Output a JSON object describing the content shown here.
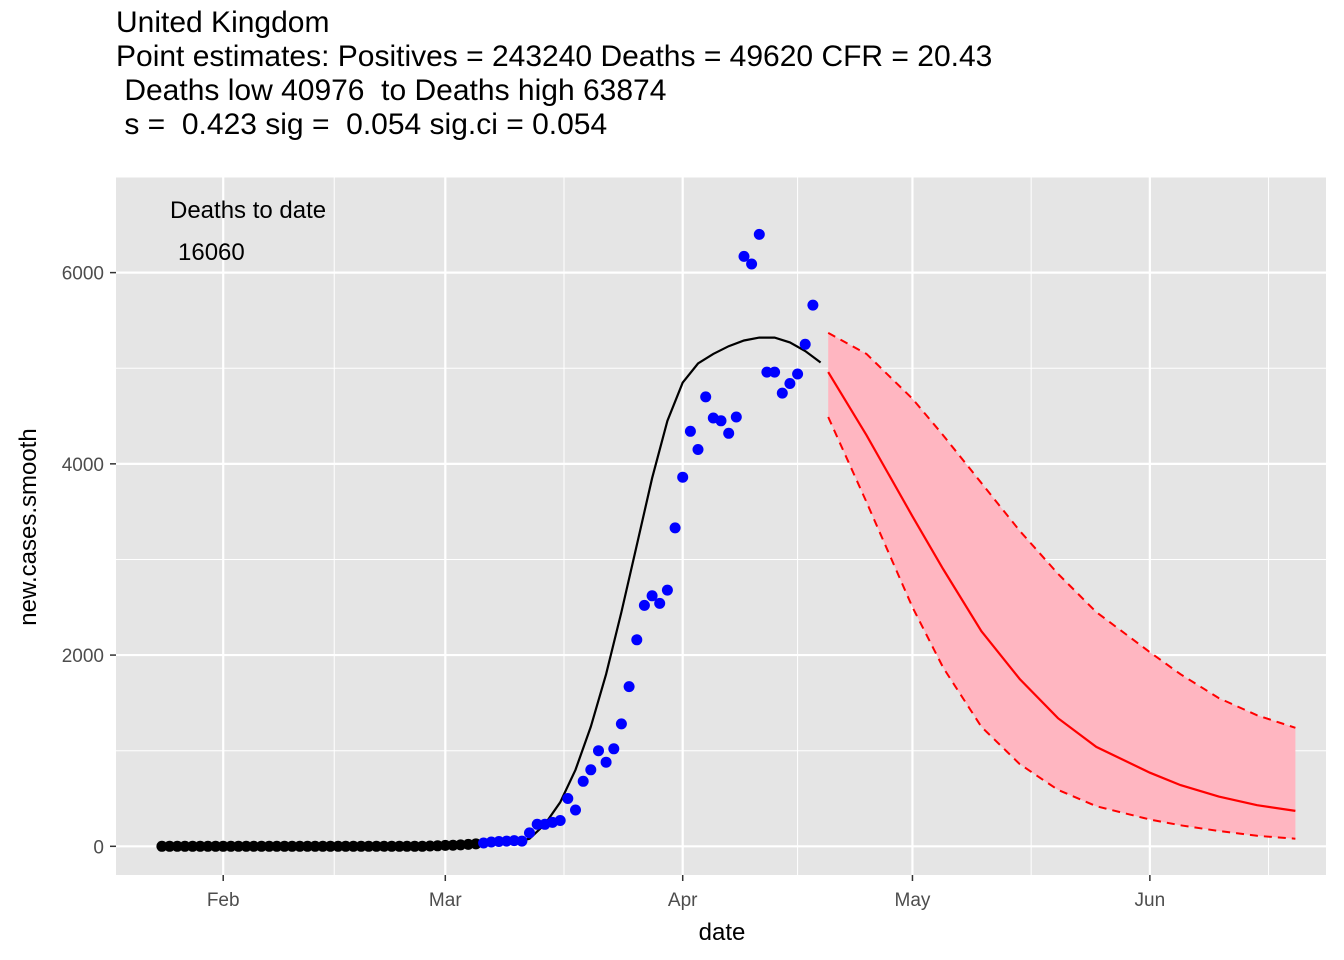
{
  "title_lines": [
    "United Kingdom",
    "Point estimates: Positives = 243240 Deaths = 49620 CFR = 20.43",
    " Deaths low 40976  to Deaths high 63874",
    " s =  0.423 sig =  0.054 sig.ci = 0.054"
  ],
  "chart_data": {
    "type": "scatter",
    "xlabel": "date",
    "ylabel": "new.cases.smooth",
    "x_ticks": [
      {
        "label": "Feb",
        "date": "2020-02-01"
      },
      {
        "label": "Mar",
        "date": "2020-03-01"
      },
      {
        "label": "Apr",
        "date": "2020-04-01"
      },
      {
        "label": "May",
        "date": "2020-05-01"
      },
      {
        "label": "Jun",
        "date": "2020-06-01"
      }
    ],
    "y_ticks": [
      0,
      2000,
      4000,
      6000
    ],
    "xlim": [
      "2020-01-18",
      "2020-06-24"
    ],
    "ylim": [
      -300,
      7000
    ],
    "grid": true,
    "annotation": {
      "line1": "Deaths to date",
      "line2": "16060"
    },
    "colors": {
      "panel": "#e5e5e5",
      "grid": "#ffffff",
      "early_points": "#000000",
      "recent_points": "#0000ff",
      "fit_line": "#000000",
      "forecast": "#ff0000",
      "forecast_band": "#ffb6c1"
    },
    "series": [
      {
        "color_key": "early_points",
        "points": [
          [
            "2020-01-24",
            0
          ],
          [
            "2020-01-25",
            0
          ],
          [
            "2020-01-26",
            0
          ],
          [
            "2020-01-27",
            0
          ],
          [
            "2020-01-28",
            0
          ],
          [
            "2020-01-29",
            0
          ],
          [
            "2020-01-30",
            0
          ],
          [
            "2020-01-31",
            0
          ],
          [
            "2020-02-01",
            0
          ],
          [
            "2020-02-02",
            0
          ],
          [
            "2020-02-03",
            0
          ],
          [
            "2020-02-04",
            0
          ],
          [
            "2020-02-05",
            0
          ],
          [
            "2020-02-06",
            0
          ],
          [
            "2020-02-07",
            0
          ],
          [
            "2020-02-08",
            0
          ],
          [
            "2020-02-09",
            0
          ],
          [
            "2020-02-10",
            0
          ],
          [
            "2020-02-11",
            0
          ],
          [
            "2020-02-12",
            0
          ],
          [
            "2020-02-13",
            0
          ],
          [
            "2020-02-14",
            0
          ],
          [
            "2020-02-15",
            0
          ],
          [
            "2020-02-16",
            0
          ],
          [
            "2020-02-17",
            0
          ],
          [
            "2020-02-18",
            0
          ],
          [
            "2020-02-19",
            0
          ],
          [
            "2020-02-20",
            0
          ],
          [
            "2020-02-21",
            0
          ],
          [
            "2020-02-22",
            0
          ],
          [
            "2020-02-23",
            0
          ],
          [
            "2020-02-24",
            0
          ],
          [
            "2020-02-25",
            0
          ],
          [
            "2020-02-26",
            0
          ],
          [
            "2020-02-27",
            0
          ],
          [
            "2020-02-28",
            3
          ],
          [
            "2020-02-29",
            5
          ],
          [
            "2020-03-01",
            10
          ],
          [
            "2020-03-02",
            12
          ],
          [
            "2020-03-03",
            15
          ],
          [
            "2020-03-04",
            20
          ],
          [
            "2020-03-05",
            25
          ]
        ]
      },
      {
        "color_key": "recent_points",
        "points": [
          [
            "2020-03-06",
            35
          ],
          [
            "2020-03-07",
            45
          ],
          [
            "2020-03-08",
            50
          ],
          [
            "2020-03-09",
            55
          ],
          [
            "2020-03-10",
            60
          ],
          [
            "2020-03-11",
            55
          ],
          [
            "2020-03-12",
            140
          ],
          [
            "2020-03-13",
            230
          ],
          [
            "2020-03-14",
            230
          ],
          [
            "2020-03-15",
            250
          ],
          [
            "2020-03-16",
            270
          ],
          [
            "2020-03-17",
            500
          ],
          [
            "2020-03-18",
            380
          ],
          [
            "2020-03-19",
            680
          ],
          [
            "2020-03-20",
            800
          ],
          [
            "2020-03-21",
            1000
          ],
          [
            "2020-03-22",
            880
          ],
          [
            "2020-03-23",
            1020
          ],
          [
            "2020-03-24",
            1280
          ],
          [
            "2020-03-25",
            1670
          ],
          [
            "2020-03-26",
            2160
          ],
          [
            "2020-03-27",
            2520
          ],
          [
            "2020-03-28",
            2620
          ],
          [
            "2020-03-29",
            2540
          ],
          [
            "2020-03-30",
            2680
          ],
          [
            "2020-03-31",
            3330
          ],
          [
            "2020-04-01",
            3860
          ],
          [
            "2020-04-02",
            4340
          ],
          [
            "2020-04-03",
            4150
          ],
          [
            "2020-04-04",
            4700
          ],
          [
            "2020-04-05",
            4480
          ],
          [
            "2020-04-06",
            4450
          ],
          [
            "2020-04-07",
            4320
          ],
          [
            "2020-04-08",
            4490
          ],
          [
            "2020-04-09",
            6170
          ],
          [
            "2020-04-10",
            6090
          ],
          [
            "2020-04-11",
            6400
          ],
          [
            "2020-04-12",
            4960
          ],
          [
            "2020-04-13",
            4960
          ],
          [
            "2020-04-14",
            4740
          ],
          [
            "2020-04-15",
            4840
          ],
          [
            "2020-04-16",
            4940
          ],
          [
            "2020-04-17",
            5250
          ],
          [
            "2020-04-18",
            5660
          ]
        ]
      }
    ],
    "fit_line": [
      [
        "2020-03-05",
        20
      ],
      [
        "2020-03-08",
        25
      ],
      [
        "2020-03-10",
        40
      ],
      [
        "2020-03-12",
        80
      ],
      [
        "2020-03-14",
        230
      ],
      [
        "2020-03-16",
        460
      ],
      [
        "2020-03-18",
        800
      ],
      [
        "2020-03-20",
        1250
      ],
      [
        "2020-03-22",
        1800
      ],
      [
        "2020-03-24",
        2450
      ],
      [
        "2020-03-26",
        3150
      ],
      [
        "2020-03-28",
        3850
      ],
      [
        "2020-03-30",
        4450
      ],
      [
        "2020-04-01",
        4850
      ],
      [
        "2020-04-03",
        5050
      ],
      [
        "2020-04-05",
        5150
      ],
      [
        "2020-04-07",
        5230
      ],
      [
        "2020-04-09",
        5290
      ],
      [
        "2020-04-11",
        5320
      ],
      [
        "2020-04-13",
        5320
      ],
      [
        "2020-04-15",
        5270
      ],
      [
        "2020-04-17",
        5180
      ],
      [
        "2020-04-19",
        5060
      ]
    ],
    "forecast": {
      "central": [
        [
          "2020-04-20",
          4960
        ],
        [
          "2020-04-25",
          4300
        ],
        [
          "2020-05-01",
          3450
        ],
        [
          "2020-05-05",
          2900
        ],
        [
          "2020-05-10",
          2250
        ],
        [
          "2020-05-15",
          1750
        ],
        [
          "2020-05-20",
          1340
        ],
        [
          "2020-05-25",
          1040
        ],
        [
          "2020-06-01",
          770
        ],
        [
          "2020-06-05",
          640
        ],
        [
          "2020-06-10",
          520
        ],
        [
          "2020-06-15",
          430
        ],
        [
          "2020-06-20",
          370
        ]
      ],
      "upper": [
        [
          "2020-04-20",
          5370
        ],
        [
          "2020-04-25",
          5150
        ],
        [
          "2020-05-01",
          4680
        ],
        [
          "2020-05-05",
          4300
        ],
        [
          "2020-05-10",
          3800
        ],
        [
          "2020-05-15",
          3300
        ],
        [
          "2020-05-20",
          2850
        ],
        [
          "2020-05-25",
          2450
        ],
        [
          "2020-06-01",
          2030
        ],
        [
          "2020-06-05",
          1800
        ],
        [
          "2020-06-10",
          1550
        ],
        [
          "2020-06-15",
          1370
        ],
        [
          "2020-06-20",
          1240
        ]
      ],
      "lower": [
        [
          "2020-04-20",
          4490
        ],
        [
          "2020-04-25",
          3600
        ],
        [
          "2020-05-01",
          2500
        ],
        [
          "2020-05-05",
          1870
        ],
        [
          "2020-05-10",
          1250
        ],
        [
          "2020-05-15",
          860
        ],
        [
          "2020-05-20",
          590
        ],
        [
          "2020-05-25",
          420
        ],
        [
          "2020-06-01",
          280
        ],
        [
          "2020-06-05",
          220
        ],
        [
          "2020-06-10",
          160
        ],
        [
          "2020-06-15",
          110
        ],
        [
          "2020-06-20",
          80
        ]
      ]
    }
  }
}
